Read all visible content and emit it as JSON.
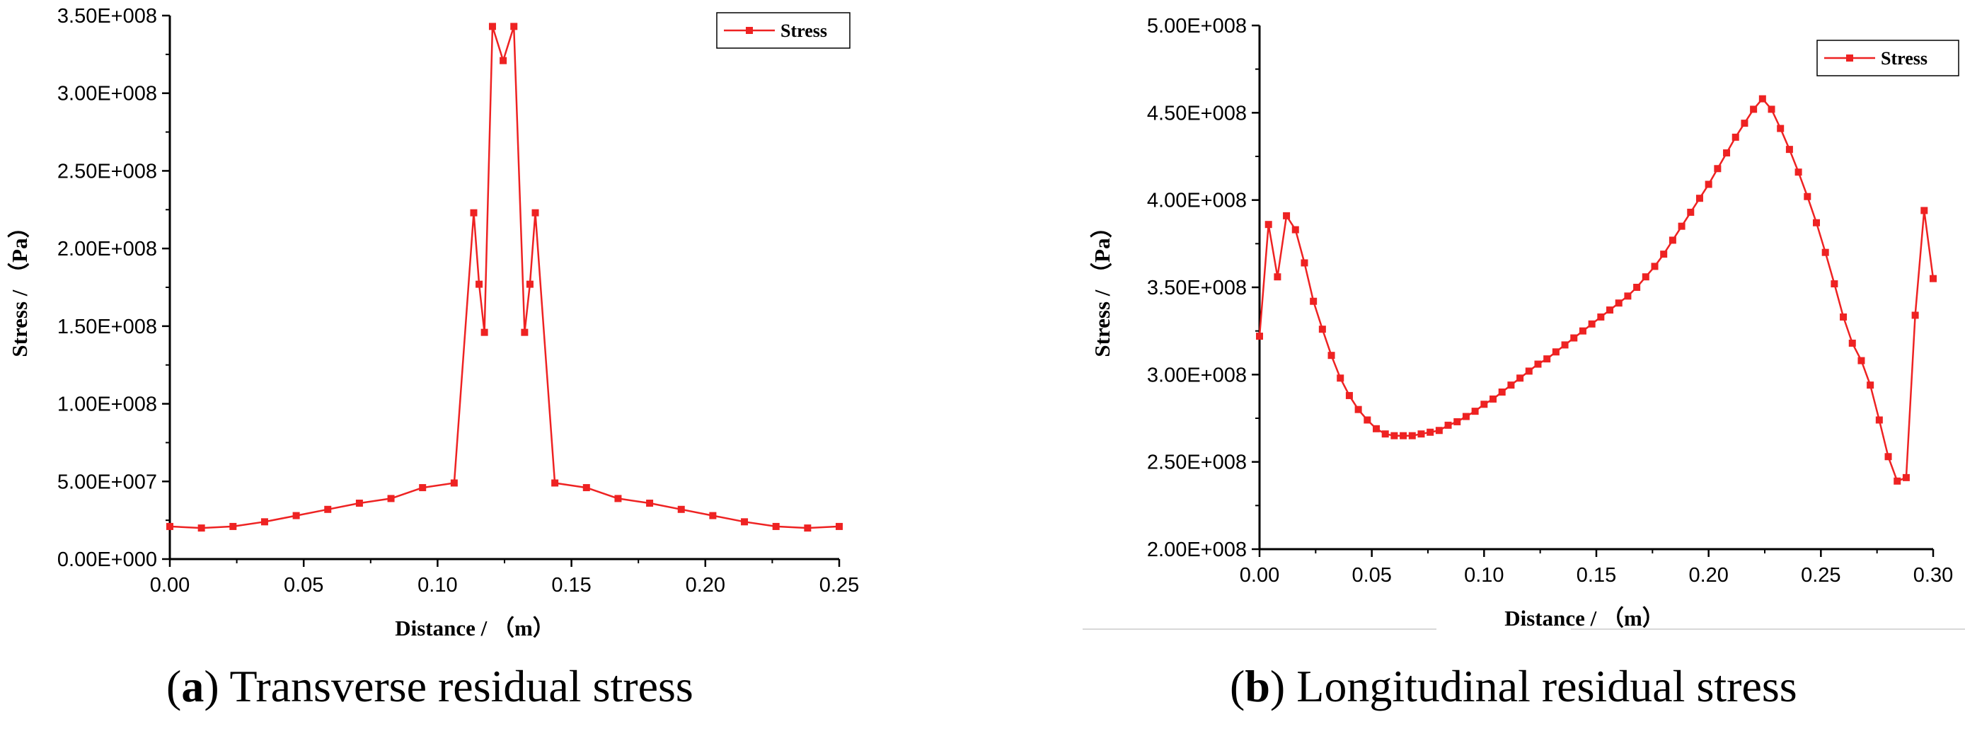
{
  "chart_data": [
    {
      "type": "line",
      "panel_label": "a",
      "caption": "Transverse residual stress",
      "xlabel": "Distance / （m）",
      "ylabel": "Stress / （Pa）",
      "xlim": [
        0,
        0.25
      ],
      "ylim": [
        0,
        350000000
      ],
      "xticks": [
        0,
        0.05,
        0.1,
        0.15,
        0.2,
        0.25
      ],
      "xtick_labels": [
        "0.00",
        "0.05",
        "0.10",
        "0.15",
        "0.20",
        "0.25"
      ],
      "yticks": [
        0,
        50000000,
        100000000,
        150000000,
        200000000,
        250000000,
        300000000,
        350000000
      ],
      "ytick_labels": [
        "0.00E+000",
        "5.00E+007",
        "1.00E+008",
        "1.50E+008",
        "2.00E+008",
        "2.50E+008",
        "3.00E+008",
        "3.50E+008"
      ],
      "grid": false,
      "legend_position": "top-right",
      "color": "#ee2222",
      "series": [
        {
          "name": "Stress",
          "x": [
            0,
            0.0118,
            0.0236,
            0.0354,
            0.0472,
            0.059,
            0.0708,
            0.0826,
            0.0944,
            0.1062,
            0.1135,
            0.1155,
            0.1175,
            0.1205,
            0.1245,
            0.1285,
            0.1325,
            0.1345,
            0.1365,
            0.1438,
            0.1556,
            0.1674,
            0.1792,
            0.191,
            0.2028,
            0.2146,
            0.2264,
            0.2382,
            0.25
          ],
          "values": [
            21000000,
            20000000,
            21000000,
            24000000,
            28000000,
            32000000,
            36000000,
            39000000,
            46000000,
            49000000,
            223000000,
            177000000,
            146000000,
            343000000,
            321000000,
            343000000,
            146000000,
            177000000,
            223000000,
            49000000,
            46000000,
            39000000,
            36000000,
            32000000,
            28000000,
            24000000,
            21000000,
            20000000,
            21000000
          ]
        }
      ]
    },
    {
      "type": "line",
      "panel_label": "b",
      "caption": "Longitudinal residual stress",
      "xlabel": "Distance / （m）",
      "ylabel": "Stress / （Pa）",
      "xlim": [
        0,
        0.3
      ],
      "ylim": [
        200000000,
        500000000
      ],
      "xticks": [
        0,
        0.05,
        0.1,
        0.15,
        0.2,
        0.25,
        0.3
      ],
      "xtick_labels": [
        "0.00",
        "0.05",
        "0.10",
        "0.15",
        "0.20",
        "0.25",
        "0.30"
      ],
      "yticks": [
        200000000,
        250000000,
        300000000,
        350000000,
        400000000,
        450000000,
        500000000
      ],
      "ytick_labels": [
        "2.00E+008",
        "2.50E+008",
        "3.00E+008",
        "3.50E+008",
        "4.00E+008",
        "4.50E+008",
        "5.00E+008"
      ],
      "grid": false,
      "legend_position": "top-right",
      "color": "#ee2222",
      "series": [
        {
          "name": "Stress",
          "x": [
            0,
            0.004,
            0.008,
            0.012,
            0.016,
            0.02,
            0.024,
            0.028,
            0.032,
            0.036,
            0.04,
            0.044,
            0.048,
            0.052,
            0.056,
            0.06,
            0.064,
            0.068,
            0.072,
            0.076,
            0.08,
            0.084,
            0.088,
            0.092,
            0.096,
            0.1,
            0.104,
            0.108,
            0.112,
            0.116,
            0.12,
            0.124,
            0.128,
            0.132,
            0.136,
            0.14,
            0.144,
            0.148,
            0.152,
            0.156,
            0.16,
            0.164,
            0.168,
            0.172,
            0.176,
            0.18,
            0.184,
            0.188,
            0.192,
            0.196,
            0.2,
            0.204,
            0.208,
            0.212,
            0.216,
            0.22,
            0.224,
            0.228,
            0.232,
            0.236,
            0.24,
            0.244,
            0.248,
            0.252,
            0.256,
            0.26,
            0.264,
            0.268,
            0.272,
            0.276,
            0.28,
            0.284,
            0.288,
            0.292,
            0.296,
            0.3
          ],
          "values": [
            322000000,
            386000000,
            356000000,
            391000000,
            383000000,
            364000000,
            342000000,
            326000000,
            311000000,
            298000000,
            288000000,
            280000000,
            274000000,
            269000000,
            266000000,
            265000000,
            265000000,
            265000000,
            266000000,
            267000000,
            268000000,
            271000000,
            273000000,
            276000000,
            279000000,
            283000000,
            286000000,
            290000000,
            294000000,
            298000000,
            302000000,
            306000000,
            309000000,
            313000000,
            317000000,
            321000000,
            325000000,
            329000000,
            333000000,
            337000000,
            341000000,
            345000000,
            350000000,
            356000000,
            362000000,
            369000000,
            377000000,
            385000000,
            393000000,
            401000000,
            409000000,
            418000000,
            427000000,
            436000000,
            444000000,
            452000000,
            458000000,
            452000000,
            441000000,
            429000000,
            416000000,
            402000000,
            387000000,
            370000000,
            352000000,
            333000000,
            318000000,
            308000000,
            294000000,
            274000000,
            253000000,
            239000000,
            241000000,
            334000000,
            394000000,
            355000000
          ]
        }
      ]
    }
  ]
}
